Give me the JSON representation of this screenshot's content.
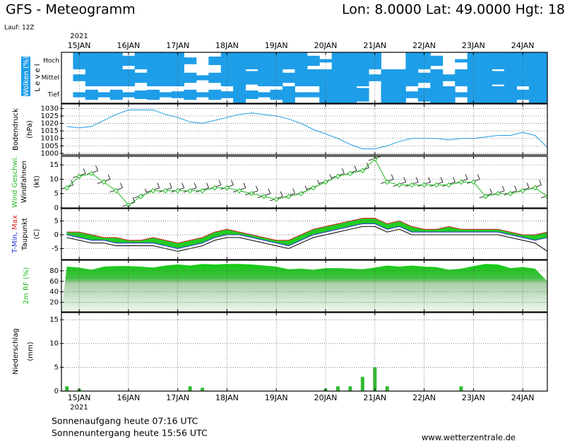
{
  "title": "GFS - Meteogramm",
  "location": "Lon: 8.0000 Lat: 49.0000 Hgt: 18",
  "run": "Lauf: 12Z",
  "year": "2021",
  "sunrise": "Sonnenaufgang heute 07:16 UTC",
  "sunset": "Sonnenuntergang heute 15:56 UTC",
  "source": "www.wetterzentrale.de",
  "time": {
    "x": [
      -0.25,
      0,
      0.25,
      0.5,
      0.75,
      1,
      1.25,
      1.5,
      1.75,
      2,
      2.25,
      2.5,
      2.75,
      3,
      3.25,
      3.5,
      3.75,
      4,
      4.25,
      4.5,
      4.75,
      5,
      5.25,
      5.5,
      5.75,
      6,
      6.25,
      6.5,
      6.75,
      7,
      7.25,
      7.5,
      7.75,
      8,
      8.25,
      8.5,
      8.75,
      9,
      9.25,
      9.5
    ],
    "xlim": [
      -0.36,
      9.5
    ],
    "xticks": [
      {
        "value": 0,
        "label": "15JAN"
      },
      {
        "value": 1,
        "label": "16JAN"
      },
      {
        "value": 2,
        "label": "17JAN"
      },
      {
        "value": 3,
        "label": "18JAN"
      },
      {
        "value": 4,
        "label": "19JAN"
      },
      {
        "value": 5,
        "label": "20JAN"
      },
      {
        "value": 6,
        "label": "21JAN"
      },
      {
        "value": 7,
        "label": "22JAN"
      },
      {
        "value": 8,
        "label": "23JAN"
      },
      {
        "value": 9,
        "label": "24JAN"
      }
    ]
  },
  "chart_data": [
    {
      "type": "cloud",
      "ylabel": "Wolken (%)",
      "ylabel2": "L e v e l",
      "color": "#1e9ee8",
      "series": [
        {
          "name": "Hoch",
          "values": [
            0,
            100,
            100,
            100,
            100,
            60,
            100,
            100,
            100,
            100,
            40,
            0,
            50,
            100,
            100,
            100,
            100,
            100,
            100,
            100,
            60,
            20,
            100,
            100,
            100,
            100,
            0,
            0,
            100,
            100,
            60,
            0,
            20,
            100,
            100,
            100,
            100,
            100,
            100,
            100
          ]
        },
        {
          "name": "Mittel",
          "values": [
            0,
            40,
            100,
            100,
            100,
            100,
            60,
            100,
            100,
            100,
            60,
            30,
            60,
            100,
            100,
            80,
            100,
            100,
            60,
            100,
            100,
            100,
            100,
            100,
            100,
            40,
            100,
            100,
            100,
            60,
            100,
            40,
            100,
            100,
            100,
            80,
            100,
            100,
            100,
            100
          ]
        },
        {
          "name": "Tief",
          "values": [
            0,
            30,
            60,
            30,
            60,
            30,
            50,
            60,
            30,
            40,
            60,
            30,
            60,
            40,
            100,
            50,
            30,
            60,
            100,
            30,
            30,
            100,
            100,
            100,
            80,
            0,
            100,
            100,
            40,
            80,
            100,
            100,
            30,
            100,
            100,
            100,
            100,
            60,
            100,
            100
          ]
        }
      ]
    },
    {
      "type": "line",
      "ylabel": "Bodendruck",
      "unit": "(hPa)",
      "color": "#1e9ee8",
      "ylim": [
        999,
        1033
      ],
      "yticks": [
        1000,
        1005,
        1010,
        1015,
        1020,
        1025,
        1030
      ],
      "values": [
        1018,
        1017,
        1018,
        1022,
        1026,
        1029,
        1029,
        1029,
        1026,
        1024,
        1021,
        1020,
        1022,
        1024,
        1026,
        1027,
        1026,
        1025,
        1023,
        1020,
        1016,
        1013,
        1010,
        1006,
        1003,
        1003,
        1005,
        1008,
        1010,
        1010,
        1010,
        1009,
        1010,
        1010,
        1011,
        1012,
        1012,
        1014,
        1012,
        1004
      ]
    },
    {
      "type": "wind",
      "ylabel": "Wind Geschwi.",
      "ylabel2": "Windfahnen",
      "unit": "(kt)",
      "color": "#22bb22",
      "ylim": [
        0,
        18
      ],
      "yticks": [
        0,
        5,
        10,
        15
      ],
      "values": [
        7,
        11,
        12,
        9,
        6,
        1,
        4,
        6,
        6,
        6,
        6,
        6,
        7,
        7,
        6,
        5,
        4,
        3,
        4,
        5,
        7,
        9,
        11,
        12,
        13,
        17,
        9,
        8,
        8,
        8,
        8,
        8,
        9,
        9,
        4,
        5,
        5,
        6,
        7,
        4
      ]
    },
    {
      "type": "temperature",
      "ylabel": "T-Min, Max",
      "unit": "(C)",
      "ylim": [
        -9,
        9.5
      ],
      "yticks": [
        -5,
        0,
        5
      ],
      "series": [
        {
          "color": "#dd2222",
          "values": [
            1,
            1,
            0,
            -1,
            -1,
            -2,
            -2,
            -1,
            -2,
            -3,
            -2,
            -1,
            1,
            2,
            1,
            0,
            -1,
            -2,
            -2,
            0,
            2,
            3,
            4,
            5,
            6,
            6,
            4,
            5,
            3,
            2,
            2,
            3,
            2,
            2,
            2,
            2,
            1,
            0,
            0,
            1
          ]
        },
        {
          "color": "#2233dd",
          "values": [
            0,
            -1,
            -2,
            -2,
            -3,
            -3,
            -3,
            -3,
            -4,
            -5,
            -4,
            -3,
            -1,
            0,
            0,
            -1,
            -2,
            -3,
            -4,
            -2,
            0,
            1,
            2,
            3,
            4,
            4,
            2,
            3,
            1,
            1,
            1,
            1,
            1,
            1,
            1,
            1,
            0,
            -1,
            -2,
            -1
          ]
        },
        {
          "name": "Taupunkt",
          "color": "#000000",
          "values": [
            -1,
            -2,
            -3,
            -3,
            -4,
            -4,
            -4,
            -4,
            -5,
            -6,
            -5,
            -4,
            -2,
            -1,
            -1,
            -2,
            -3,
            -4,
            -5,
            -3,
            -1,
            0,
            1,
            2,
            3,
            3,
            1,
            2,
            0,
            0,
            0,
            0,
            0,
            0,
            0,
            0,
            -1,
            -2,
            -3,
            -6
          ]
        }
      ]
    },
    {
      "type": "area",
      "ylabel": "2m RF (%)",
      "color": "#11cc11",
      "ylim": [
        2,
        100
      ],
      "yticks": [
        20,
        40,
        60,
        80
      ],
      "values": [
        88,
        86,
        82,
        88,
        89,
        89,
        88,
        86,
        90,
        92,
        90,
        93,
        92,
        93,
        93,
        92,
        90,
        88,
        83,
        84,
        82,
        85,
        85,
        84,
        83,
        86,
        90,
        88,
        90,
        88,
        87,
        82,
        84,
        89,
        93,
        92,
        85,
        87,
        84,
        60
      ]
    },
    {
      "type": "bar",
      "ylabel": "Niederschlag",
      "unit": "(mm)",
      "color": "#33bb33",
      "ylim": [
        0,
        16.5
      ],
      "yticks": [
        0,
        5,
        10,
        15
      ],
      "values": [
        1,
        0.5,
        0,
        0,
        0,
        0,
        0,
        0,
        0,
        0,
        1,
        0.7,
        0,
        0,
        0,
        0,
        0,
        0,
        0,
        0,
        0,
        0.5,
        1,
        1,
        3,
        5,
        1,
        0,
        0,
        0,
        0,
        0,
        1,
        0,
        0,
        0,
        0,
        0,
        0,
        0
      ]
    }
  ]
}
